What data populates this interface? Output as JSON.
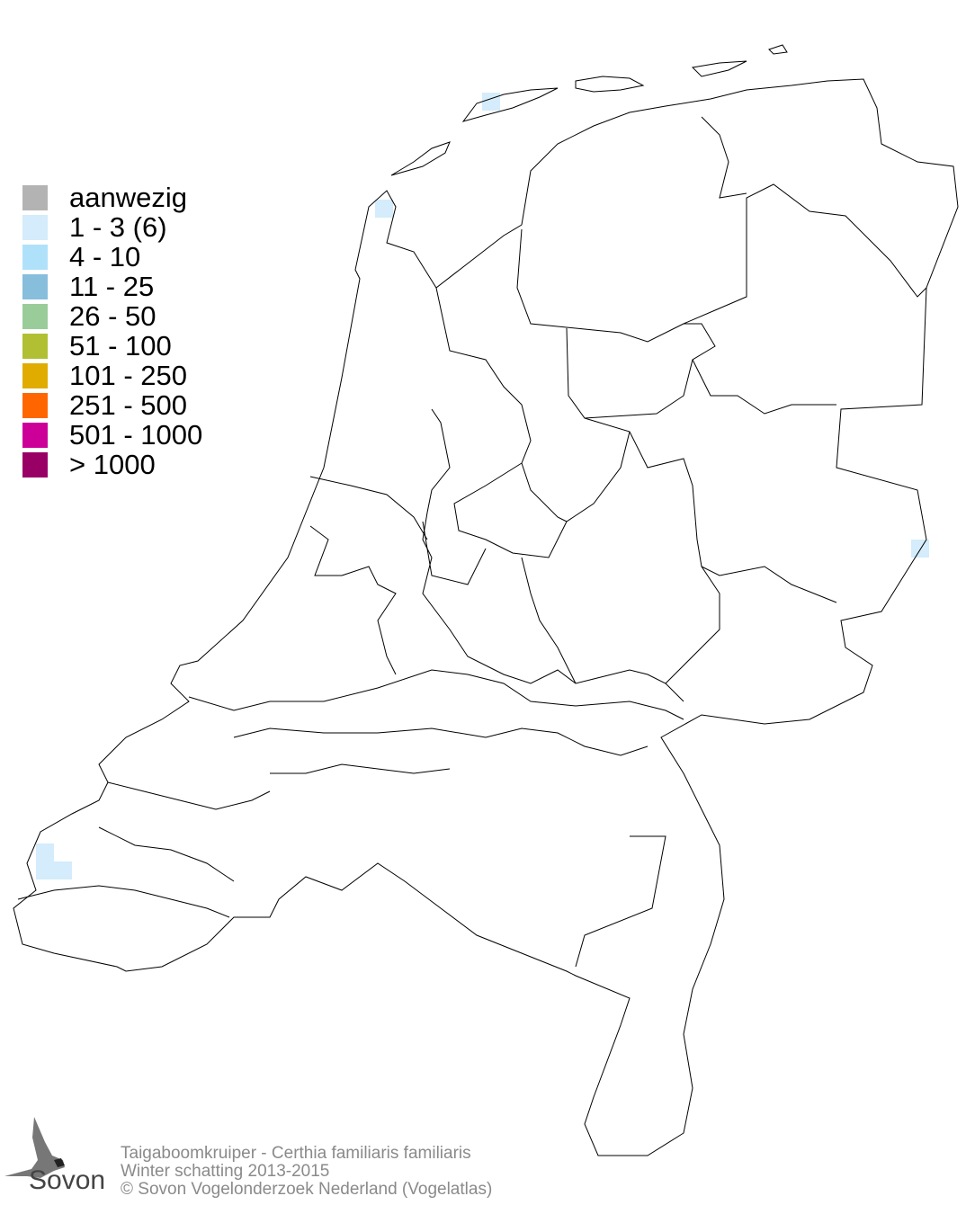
{
  "legend": {
    "items": [
      {
        "label": "aanwezig",
        "color": "#b3b3b3"
      },
      {
        "label": "1 - 3 (6)",
        "color": "#d4ecfb"
      },
      {
        "label": "4 - 10",
        "color": "#b0e1fa"
      },
      {
        "label": "11 - 25",
        "color": "#87bedc"
      },
      {
        "label": "26 - 50",
        "color": "#99cc99"
      },
      {
        "label": "51 - 100",
        "color": "#b0c032"
      },
      {
        "label": "101 - 250",
        "color": "#e0ac00"
      },
      {
        "label": "251 - 500",
        "color": "#ff6600"
      },
      {
        "label": "501 - 1000",
        "color": "#cc0099"
      },
      {
        "label": "> 1000",
        "color": "#990066"
      }
    ]
  },
  "map": {
    "occupied_cells_class": "1 - 3 (6)",
    "cell_color": "#d4ecfb",
    "outline_color": "#000000"
  },
  "footer": {
    "species": "Taigaboomkruiper - Certhia familiaris familiaris",
    "period": "Winter schatting 2013-2015",
    "copyright": "© Sovon Vogelonderzoek Nederland (Vogelatlas)"
  },
  "logo": {
    "text": "Sovon"
  }
}
